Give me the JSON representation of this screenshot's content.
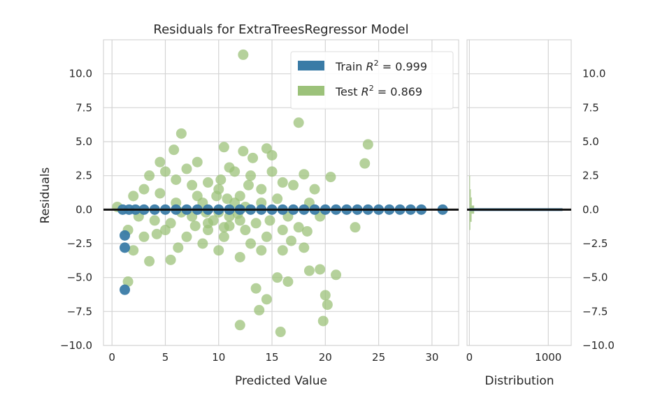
{
  "chart_data": {
    "type": "scatter",
    "title": "Residuals for ExtraTreesRegressor Model",
    "xlabel": "Predicted Value",
    "ylabel": "Residuals",
    "xlim": [
      -0.8,
      32.5
    ],
    "ylim": [
      -10.0,
      12.5
    ],
    "xticks": [
      0,
      5,
      10,
      15,
      20,
      25,
      30
    ],
    "xtick_labels": [
      "0",
      "5",
      "10",
      "15",
      "20",
      "25",
      "30"
    ],
    "yticks": [
      -10,
      -7.5,
      -5,
      -2.5,
      0,
      2.5,
      5,
      7.5,
      10
    ],
    "ytick_labels": [
      "−10.0",
      "−7.5",
      "−5.0",
      "−2.5",
      "0.0",
      "2.5",
      "5.0",
      "7.5",
      "10.0"
    ],
    "zero_line": 0,
    "legend": {
      "placement": "top-right",
      "entries": [
        {
          "label_prefix": "Train ",
          "r2_symbol": "R",
          "superscript": "2",
          "label_suffix": " = 0.999"
        },
        {
          "label_prefix": "Test ",
          "r2_symbol": "R",
          "superscript": "2",
          "label_suffix": " = 0.869"
        }
      ]
    },
    "series": [
      {
        "name": "Train",
        "color": "#3a7ba6",
        "points": [
          [
            1.2,
            -1.9
          ],
          [
            1.2,
            -2.8
          ],
          [
            1.2,
            -5.9
          ],
          [
            1.0,
            0.0
          ],
          [
            1.6,
            0.0
          ],
          [
            2.2,
            0.0
          ],
          [
            3.0,
            0.0
          ],
          [
            4.0,
            0.0
          ],
          [
            5.0,
            0.0
          ],
          [
            6.0,
            0.0
          ],
          [
            7.0,
            0.0
          ],
          [
            8.0,
            0.0
          ],
          [
            9.0,
            0.0
          ],
          [
            10.0,
            0.0
          ],
          [
            11.0,
            0.0
          ],
          [
            12.0,
            0.0
          ],
          [
            13.0,
            0.0
          ],
          [
            14.0,
            0.0
          ],
          [
            15.0,
            0.0
          ],
          [
            16.0,
            0.0
          ],
          [
            17.0,
            0.0
          ],
          [
            18.0,
            0.0
          ],
          [
            19.0,
            0.0
          ],
          [
            20.0,
            0.0
          ],
          [
            21.0,
            0.0
          ],
          [
            22.0,
            0.0
          ],
          [
            23.0,
            0.0
          ],
          [
            24.0,
            0.0
          ],
          [
            25.0,
            0.0
          ],
          [
            26.0,
            0.0
          ],
          [
            27.0,
            0.0
          ],
          [
            28.0,
            0.0
          ],
          [
            29.0,
            0.0
          ],
          [
            31.0,
            0.0
          ]
        ]
      },
      {
        "name": "Test",
        "color": "#9cc27a",
        "points": [
          [
            12.3,
            11.4
          ],
          [
            17.5,
            6.4
          ],
          [
            6.5,
            5.6
          ],
          [
            10.5,
            4.6
          ],
          [
            24.0,
            4.8
          ],
          [
            5.8,
            4.4
          ],
          [
            12.3,
            4.3
          ],
          [
            14.5,
            4.5
          ],
          [
            15.0,
            4.0
          ],
          [
            23.7,
            3.4
          ],
          [
            20.5,
            2.4
          ],
          [
            18.0,
            2.6
          ],
          [
            4.5,
            3.5
          ],
          [
            7.0,
            3.0
          ],
          [
            9.0,
            2.0
          ],
          [
            11.0,
            3.1
          ],
          [
            13.0,
            2.5
          ],
          [
            16.0,
            2.0
          ],
          [
            19.0,
            1.5
          ],
          [
            2.0,
            1.0
          ],
          [
            3.5,
            2.5
          ],
          [
            8.0,
            1.0
          ],
          [
            10.0,
            1.5
          ],
          [
            12.0,
            1.0
          ],
          [
            14.0,
            1.5
          ],
          [
            6.0,
            0.5
          ],
          [
            11.5,
            0.5
          ],
          [
            15.5,
            0.8
          ],
          [
            18.5,
            0.5
          ],
          [
            0.5,
            0.2
          ],
          [
            2.5,
            -0.5
          ],
          [
            4.0,
            -0.8
          ],
          [
            5.5,
            -1.0
          ],
          [
            7.5,
            -0.5
          ],
          [
            9.5,
            -0.8
          ],
          [
            11.0,
            -0.5
          ],
          [
            13.5,
            -1.0
          ],
          [
            16.5,
            -0.5
          ],
          [
            19.5,
            -0.5
          ],
          [
            22.8,
            -1.3
          ],
          [
            1.5,
            -1.5
          ],
          [
            3.0,
            -2.0
          ],
          [
            5.0,
            -1.5
          ],
          [
            7.0,
            -2.0
          ],
          [
            9.0,
            -1.5
          ],
          [
            10.5,
            -2.0
          ],
          [
            12.5,
            -1.5
          ],
          [
            14.5,
            -2.0
          ],
          [
            16.0,
            -1.5
          ],
          [
            17.5,
            -1.3
          ],
          [
            2.0,
            -3.0
          ],
          [
            3.5,
            -3.8
          ],
          [
            5.5,
            -3.7
          ],
          [
            8.5,
            -2.5
          ],
          [
            10.0,
            -3.0
          ],
          [
            12.0,
            -3.5
          ],
          [
            14.0,
            -3.0
          ],
          [
            16.0,
            -3.0
          ],
          [
            18.0,
            -2.8
          ],
          [
            1.5,
            -5.3
          ],
          [
            13.5,
            -5.8
          ],
          [
            15.5,
            -5.0
          ],
          [
            16.5,
            -5.3
          ],
          [
            18.5,
            -4.5
          ],
          [
            19.5,
            -4.4
          ],
          [
            20.0,
            -6.3
          ],
          [
            20.2,
            -7.0
          ],
          [
            21.0,
            -4.8
          ],
          [
            14.5,
            -6.6
          ],
          [
            13.8,
            -7.4
          ],
          [
            12.0,
            -8.5
          ],
          [
            15.8,
            -9.0
          ],
          [
            19.8,
            -8.2
          ],
          [
            6.0,
            2.2
          ],
          [
            8.0,
            3.5
          ],
          [
            11.5,
            2.8
          ],
          [
            13.2,
            3.8
          ],
          [
            15.0,
            2.8
          ],
          [
            17.0,
            1.8
          ],
          [
            4.5,
            1.2
          ],
          [
            6.5,
            -0.2
          ],
          [
            8.5,
            0.5
          ],
          [
            10.0,
            -0.2
          ],
          [
            12.0,
            -0.8
          ],
          [
            14.0,
            0.5
          ],
          [
            9.0,
            -1.0
          ],
          [
            11.0,
            -1.2
          ],
          [
            7.5,
            1.8
          ],
          [
            12.8,
            1.8
          ],
          [
            10.8,
            0.8
          ],
          [
            9.8,
            1.0
          ],
          [
            11.8,
            -0.3
          ],
          [
            8.8,
            -0.2
          ],
          [
            10.2,
            2.2
          ],
          [
            13.0,
            -2.5
          ],
          [
            6.2,
            -2.8
          ],
          [
            4.2,
            -1.8
          ],
          [
            3.0,
            1.5
          ],
          [
            5.0,
            2.8
          ],
          [
            7.8,
            -1.2
          ],
          [
            10.5,
            -1.3
          ],
          [
            12.5,
            0.2
          ],
          [
            14.8,
            -0.8
          ],
          [
            16.8,
            -2.3
          ],
          [
            18.3,
            -1.6
          ]
        ]
      }
    ],
    "distribution_panel": {
      "xlabel": "Distribution",
      "xticks": [
        0,
        1000
      ],
      "xtick_labels": [
        "0",
        "1000"
      ],
      "xlim": [
        -30,
        1290
      ],
      "ytick_labels": [
        "−10.0",
        "−7.5",
        "−5.0",
        "−2.5",
        "0.0",
        "2.5",
        "5.0",
        "7.5",
        "10.0"
      ],
      "train_bins": [
        {
          "y0": -0.05,
          "y1": 0.05,
          "count": 1180
        }
      ],
      "test_bins": [
        {
          "y0": -1.5,
          "y1": -0.9,
          "count": 12
        },
        {
          "y0": -0.9,
          "y1": -0.3,
          "count": 28
        },
        {
          "y0": -0.3,
          "y1": 0.3,
          "count": 60
        },
        {
          "y0": 0.3,
          "y1": 0.9,
          "count": 30
        },
        {
          "y0": 0.9,
          "y1": 1.5,
          "count": 18
        },
        {
          "y0": 1.5,
          "y1": 2.5,
          "count": 8
        }
      ]
    }
  }
}
